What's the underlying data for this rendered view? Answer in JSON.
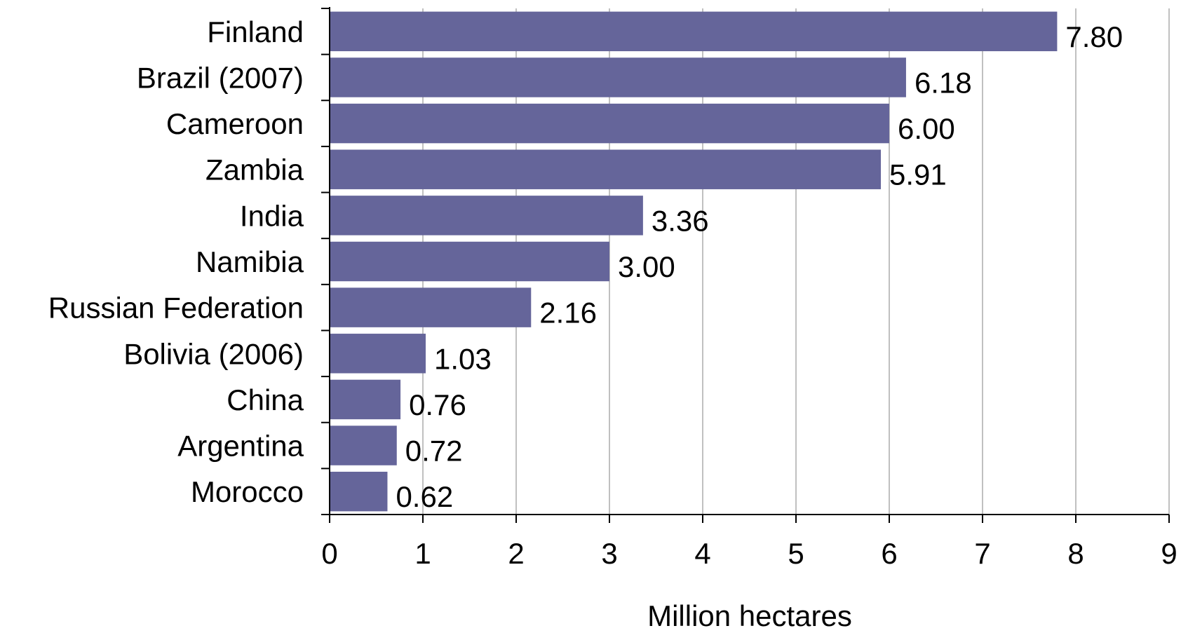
{
  "chart_data": {
    "type": "bar",
    "orientation": "horizontal",
    "title": "",
    "xlabel": "Million hectares",
    "ylabel": "",
    "xlim": [
      0,
      9
    ],
    "xticks": [
      "0",
      "1",
      "2",
      "3",
      "4",
      "5",
      "6",
      "7",
      "8",
      "9"
    ],
    "grid": "vertical",
    "legend": "none",
    "bar_color": "#65659a",
    "categories": [
      "Finland",
      "Brazil (2007)",
      "Cameroon",
      "Zambia",
      "India",
      "Namibia",
      "Russian Federation",
      "Bolivia (2006)",
      "China",
      "Argentina",
      "Morocco"
    ],
    "values": [
      7.8,
      6.18,
      6.0,
      5.91,
      3.36,
      3.0,
      2.16,
      1.03,
      0.76,
      0.72,
      0.62
    ],
    "value_labels": [
      "7.80",
      "6.18",
      "6.00",
      "5.91",
      "3.36",
      "3.00",
      "2.16",
      "1.03",
      "0.76",
      "0.72",
      "0.62"
    ]
  }
}
